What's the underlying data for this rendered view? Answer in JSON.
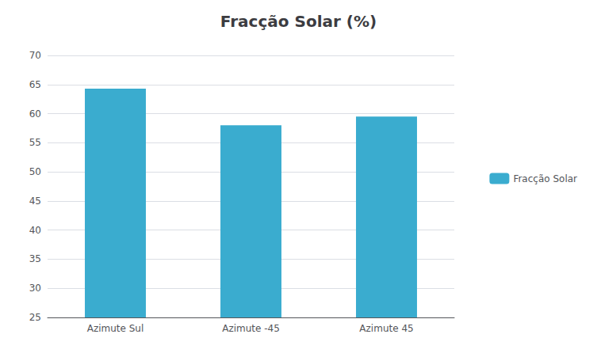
{
  "chart_data": {
    "type": "bar",
    "title": "Fracção Solar (%)",
    "categories": [
      "Azimute Sul",
      "Azimute -45",
      "Azimute 45"
    ],
    "series": [
      {
        "name": "Fracção Solar",
        "color": "#3AACCF",
        "values": [
          64.3,
          58.0,
          59.5
        ]
      }
    ],
    "ylim": [
      25,
      70
    ],
    "yticks": [
      25,
      30,
      35,
      40,
      45,
      50,
      55,
      60,
      65,
      70
    ],
    "grid": true,
    "legend": "right"
  }
}
